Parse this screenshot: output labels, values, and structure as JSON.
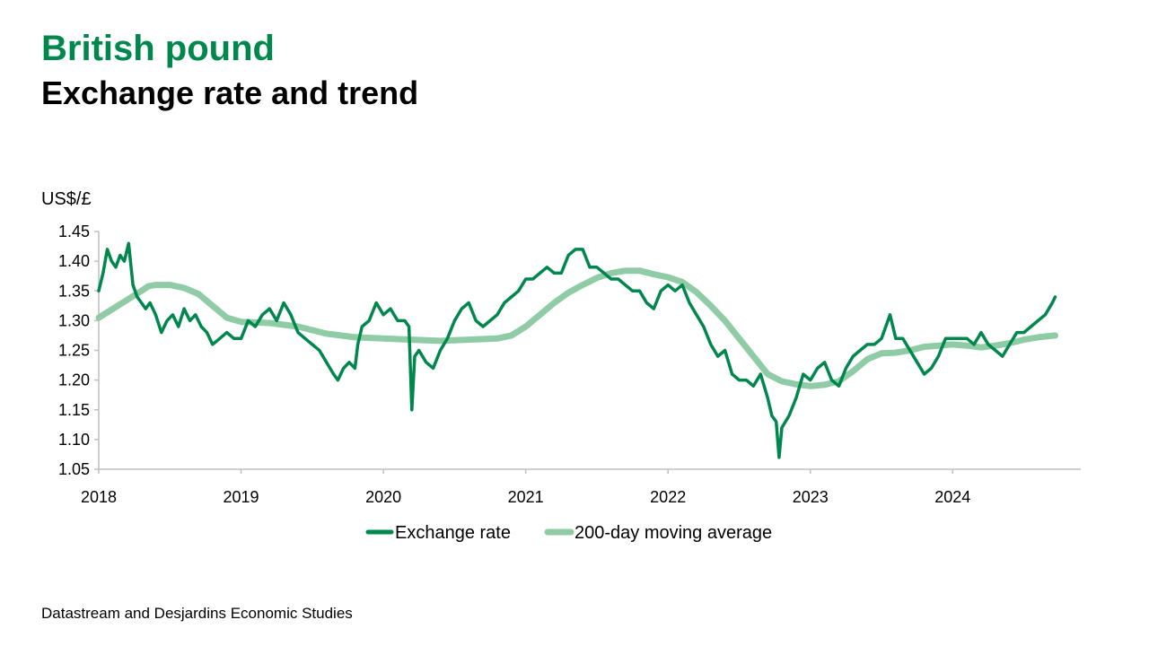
{
  "header": {
    "title": "British pound",
    "subtitle": "Exchange rate and trend"
  },
  "source": "Datastream and Desjardins Economic Studies",
  "colors": {
    "exchange_rate": "#00874d",
    "moving_average": "#8fcca6"
  },
  "chart_data": {
    "type": "line",
    "ylabel": "US$/£",
    "ylim": [
      1.05,
      1.45
    ],
    "yticks": [
      "1.45",
      "1.40",
      "1.35",
      "1.30",
      "1.25",
      "1.20",
      "1.15",
      "1.10",
      "1.05"
    ],
    "xlim": [
      2018.0,
      2024.9
    ],
    "xticks": [
      "2018",
      "2019",
      "2020",
      "2021",
      "2022",
      "2023",
      "2024"
    ],
    "grid": false,
    "legend": "bottom",
    "series": [
      {
        "name": "Exchange rate",
        "x": [
          2018.0,
          2018.03,
          2018.06,
          2018.09,
          2018.12,
          2018.15,
          2018.18,
          2018.21,
          2018.24,
          2018.27,
          2018.3,
          2018.33,
          2018.36,
          2018.4,
          2018.44,
          2018.48,
          2018.52,
          2018.56,
          2018.6,
          2018.64,
          2018.68,
          2018.72,
          2018.76,
          2018.8,
          2018.85,
          2018.9,
          2018.95,
          2019.0,
          2019.05,
          2019.1,
          2019.15,
          2019.2,
          2019.25,
          2019.3,
          2019.35,
          2019.4,
          2019.45,
          2019.5,
          2019.55,
          2019.6,
          2019.65,
          2019.68,
          2019.72,
          2019.76,
          2019.8,
          2019.82,
          2019.85,
          2019.9,
          2019.95,
          2020.0,
          2020.05,
          2020.1,
          2020.15,
          2020.18,
          2020.2,
          2020.22,
          2020.25,
          2020.3,
          2020.35,
          2020.4,
          2020.45,
          2020.5,
          2020.55,
          2020.6,
          2020.65,
          2020.7,
          2020.75,
          2020.8,
          2020.85,
          2020.9,
          2020.95,
          2021.0,
          2021.05,
          2021.1,
          2021.15,
          2021.2,
          2021.25,
          2021.3,
          2021.35,
          2021.4,
          2021.45,
          2021.5,
          2021.55,
          2021.6,
          2021.65,
          2021.7,
          2021.75,
          2021.8,
          2021.85,
          2021.9,
          2021.95,
          2022.0,
          2022.05,
          2022.1,
          2022.15,
          2022.2,
          2022.25,
          2022.3,
          2022.35,
          2022.4,
          2022.45,
          2022.5,
          2022.55,
          2022.6,
          2022.65,
          2022.7,
          2022.73,
          2022.76,
          2022.78,
          2022.8,
          2022.85,
          2022.9,
          2022.95,
          2023.0,
          2023.05,
          2023.1,
          2023.15,
          2023.2,
          2023.25,
          2023.3,
          2023.35,
          2023.4,
          2023.45,
          2023.5,
          2023.53,
          2023.56,
          2023.6,
          2023.65,
          2023.7,
          2023.75,
          2023.8,
          2023.85,
          2023.9,
          2023.95,
          2024.0,
          2024.05,
          2024.1,
          2024.15,
          2024.2,
          2024.25,
          2024.3,
          2024.35,
          2024.4,
          2024.45,
          2024.5,
          2024.55,
          2024.6,
          2024.65,
          2024.7,
          2024.72
        ],
        "values": [
          1.35,
          1.38,
          1.42,
          1.4,
          1.39,
          1.41,
          1.4,
          1.43,
          1.36,
          1.34,
          1.33,
          1.32,
          1.33,
          1.31,
          1.28,
          1.3,
          1.31,
          1.29,
          1.32,
          1.3,
          1.31,
          1.29,
          1.28,
          1.26,
          1.27,
          1.28,
          1.27,
          1.27,
          1.3,
          1.29,
          1.31,
          1.32,
          1.3,
          1.33,
          1.31,
          1.28,
          1.27,
          1.26,
          1.25,
          1.23,
          1.21,
          1.2,
          1.22,
          1.23,
          1.22,
          1.26,
          1.29,
          1.3,
          1.33,
          1.31,
          1.32,
          1.3,
          1.3,
          1.29,
          1.15,
          1.24,
          1.25,
          1.23,
          1.22,
          1.25,
          1.27,
          1.3,
          1.32,
          1.33,
          1.3,
          1.29,
          1.3,
          1.31,
          1.33,
          1.34,
          1.35,
          1.37,
          1.37,
          1.38,
          1.39,
          1.38,
          1.38,
          1.41,
          1.42,
          1.42,
          1.39,
          1.39,
          1.38,
          1.37,
          1.37,
          1.36,
          1.35,
          1.35,
          1.33,
          1.32,
          1.35,
          1.36,
          1.35,
          1.36,
          1.33,
          1.31,
          1.29,
          1.26,
          1.24,
          1.25,
          1.21,
          1.2,
          1.2,
          1.19,
          1.21,
          1.17,
          1.14,
          1.13,
          1.07,
          1.12,
          1.14,
          1.17,
          1.21,
          1.2,
          1.22,
          1.23,
          1.2,
          1.19,
          1.22,
          1.24,
          1.25,
          1.26,
          1.26,
          1.27,
          1.29,
          1.31,
          1.27,
          1.27,
          1.25,
          1.23,
          1.21,
          1.22,
          1.24,
          1.27,
          1.27,
          1.27,
          1.27,
          1.26,
          1.28,
          1.26,
          1.25,
          1.24,
          1.26,
          1.28,
          1.28,
          1.29,
          1.3,
          1.31,
          1.33,
          1.34
        ]
      },
      {
        "name": "200-day moving average",
        "x": [
          2018.0,
          2018.1,
          2018.2,
          2018.3,
          2018.35,
          2018.4,
          2018.5,
          2018.6,
          2018.7,
          2018.8,
          2018.9,
          2019.0,
          2019.2,
          2019.4,
          2019.6,
          2019.8,
          2020.0,
          2020.2,
          2020.4,
          2020.6,
          2020.8,
          2020.9,
          2021.0,
          2021.1,
          2021.2,
          2021.3,
          2021.4,
          2021.5,
          2021.6,
          2021.7,
          2021.8,
          2021.9,
          2022.0,
          2022.1,
          2022.2,
          2022.3,
          2022.4,
          2022.5,
          2022.6,
          2022.7,
          2022.8,
          2022.9,
          2023.0,
          2023.1,
          2023.2,
          2023.3,
          2023.4,
          2023.5,
          2023.6,
          2023.7,
          2023.8,
          2023.9,
          2024.0,
          2024.1,
          2024.2,
          2024.3,
          2024.4,
          2024.5,
          2024.6,
          2024.72
        ],
        "values": [
          1.305,
          1.32,
          1.335,
          1.35,
          1.358,
          1.36,
          1.36,
          1.355,
          1.345,
          1.325,
          1.305,
          1.298,
          1.296,
          1.29,
          1.278,
          1.272,
          1.27,
          1.268,
          1.266,
          1.268,
          1.27,
          1.275,
          1.29,
          1.31,
          1.33,
          1.347,
          1.36,
          1.372,
          1.38,
          1.384,
          1.384,
          1.378,
          1.373,
          1.365,
          1.348,
          1.325,
          1.3,
          1.27,
          1.24,
          1.21,
          1.198,
          1.193,
          1.19,
          1.192,
          1.198,
          1.215,
          1.235,
          1.245,
          1.246,
          1.25,
          1.256,
          1.258,
          1.26,
          1.258,
          1.255,
          1.258,
          1.262,
          1.268,
          1.272,
          1.275
        ]
      }
    ]
  }
}
